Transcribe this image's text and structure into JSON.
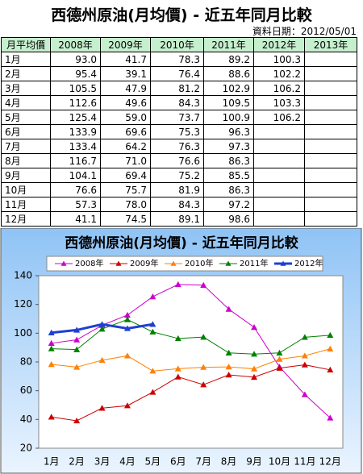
{
  "header": {
    "title": "西德州原油(月均價) - 近五年同月比較",
    "date": "資料日期：2012/05/01"
  },
  "table": {
    "header": [
      "月平均價",
      "2008年",
      "2009年",
      "2010年",
      "2011年",
      "2012年",
      "2013年"
    ],
    "rows": [
      [
        "1月",
        "93.0",
        "41.7",
        "78.3",
        "89.2",
        "100.3",
        null
      ],
      [
        "2月",
        "95.4",
        "39.1",
        "76.4",
        "88.6",
        "102.2",
        null
      ],
      [
        "3月",
        "105.5",
        "47.9",
        "81.2",
        "102.9",
        "106.2",
        null
      ],
      [
        "4月",
        "112.6",
        "49.6",
        "84.3",
        "109.5",
        "103.3",
        null
      ],
      [
        "5月",
        "125.4",
        "59.0",
        "73.7",
        "100.9",
        "106.2",
        null
      ],
      [
        "6月",
        "133.9",
        "69.6",
        "75.3",
        "96.3",
        null,
        null
      ],
      [
        "7月",
        "133.4",
        "64.2",
        "76.3",
        "97.3",
        null,
        null
      ],
      [
        "8月",
        "116.7",
        "71.0",
        "76.6",
        "86.3",
        null,
        null
      ],
      [
        "9月",
        "104.1",
        "69.4",
        "75.2",
        "85.5",
        null,
        null
      ],
      [
        "10月",
        "76.6",
        "75.7",
        "81.9",
        "86.3",
        null,
        null
      ],
      [
        "11月",
        "57.3",
        "78.0",
        "84.3",
        "97.2",
        null,
        null
      ],
      [
        "12月",
        "41.1",
        "74.5",
        "89.1",
        "98.6",
        null,
        null
      ]
    ]
  },
  "chart_data": {
    "type": "line",
    "title": "西德州原油(月均價) - 近五年同月比較",
    "categories": [
      "1月",
      "2月",
      "3月",
      "4月",
      "5月",
      "6月",
      "7月",
      "8月",
      "9月",
      "10月",
      "11月",
      "12月"
    ],
    "series": [
      {
        "name": "2008年",
        "color": "#cc00cc",
        "values": [
          93.0,
          95.4,
          105.5,
          112.6,
          125.4,
          133.9,
          133.4,
          116.7,
          104.1,
          76.6,
          57.3,
          41.1
        ]
      },
      {
        "name": "2009年",
        "color": "#cc0000",
        "values": [
          41.7,
          39.1,
          47.9,
          49.6,
          59.0,
          69.6,
          64.2,
          71.0,
          69.4,
          75.7,
          78.0,
          74.5
        ]
      },
      {
        "name": "2010年",
        "color": "#ff8000",
        "values": [
          78.3,
          76.4,
          81.2,
          84.3,
          73.7,
          75.3,
          76.3,
          76.6,
          75.2,
          81.9,
          84.3,
          89.1
        ]
      },
      {
        "name": "2011年",
        "color": "#008000",
        "values": [
          89.2,
          88.6,
          102.9,
          109.5,
          100.9,
          96.3,
          97.3,
          86.3,
          85.5,
          86.3,
          97.2,
          98.6
        ]
      },
      {
        "name": "2012年",
        "color": "#1f3fd0",
        "values": [
          100.3,
          102.2,
          106.2,
          103.3,
          106.2,
          null,
          null,
          null,
          null,
          null,
          null,
          null
        ]
      }
    ],
    "ylim": [
      20,
      140
    ],
    "yticks": [
      20,
      40,
      60,
      80,
      100,
      120,
      140
    ],
    "grid": false,
    "legend": "top"
  }
}
